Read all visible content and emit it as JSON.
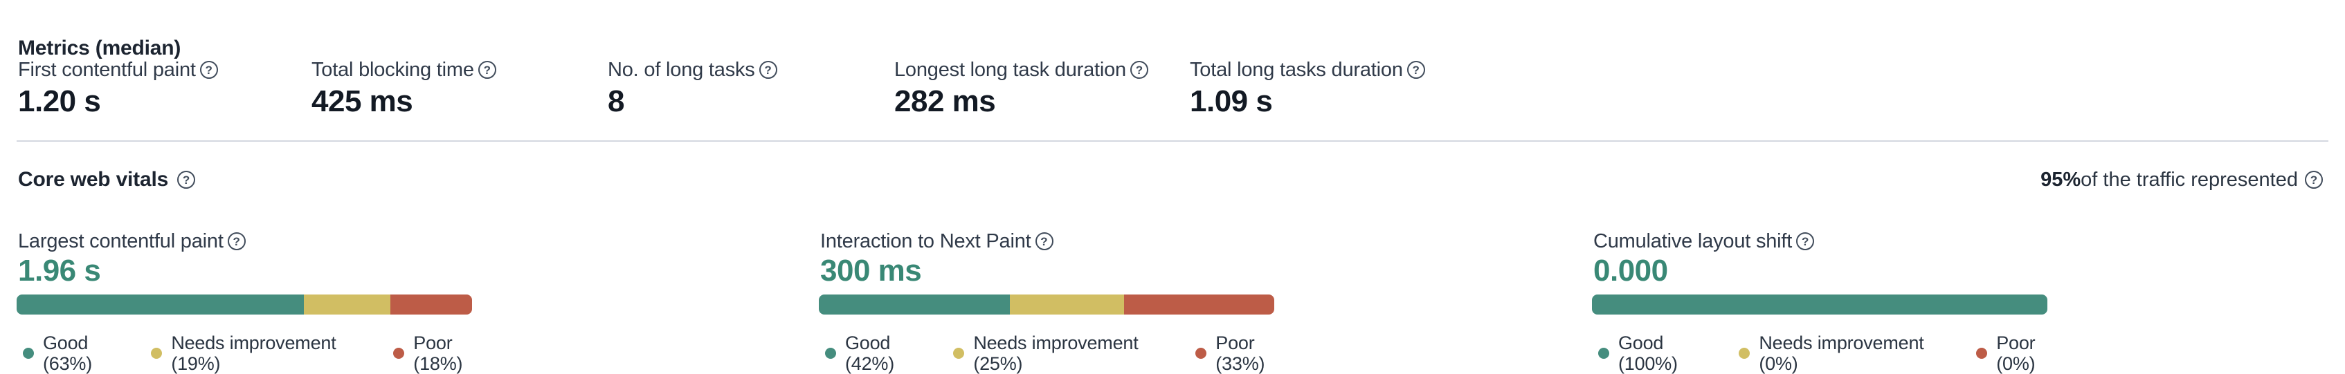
{
  "metrics": {
    "title": "Metrics (median)",
    "items": [
      {
        "label": "First contentful paint",
        "value": "1.20 s"
      },
      {
        "label": "Total blocking time",
        "value": "425 ms"
      },
      {
        "label": "No. of long tasks",
        "value": "8"
      },
      {
        "label": "Longest long task duration",
        "value": "282 ms"
      },
      {
        "label": "Total long tasks duration",
        "value": "1.09 s"
      }
    ]
  },
  "core_web_vitals": {
    "title": "Core web vitals",
    "traffic_percent": "95%",
    "traffic_text": " of the traffic represented",
    "vitals": [
      {
        "label": "Largest contentful paint",
        "value": "1.96 s",
        "distribution": {
          "good": 63,
          "needs_improvement": 19,
          "poor": 18
        },
        "legend": [
          {
            "key": "good",
            "label": "Good (63%)"
          },
          {
            "key": "needs_improvement",
            "label": "Needs improvement (19%)"
          },
          {
            "key": "poor",
            "label": "Poor (18%)"
          }
        ]
      },
      {
        "label": "Interaction to Next Paint",
        "value": "300 ms",
        "distribution": {
          "good": 42,
          "needs_improvement": 25,
          "poor": 33
        },
        "legend": [
          {
            "key": "good",
            "label": "Good (42%)"
          },
          {
            "key": "needs_improvement",
            "label": "Needs improvement (25%)"
          },
          {
            "key": "poor",
            "label": "Poor (33%)"
          }
        ]
      },
      {
        "label": "Cumulative layout shift",
        "value": "0.000",
        "distribution": {
          "good": 100,
          "needs_improvement": 0,
          "poor": 0
        },
        "legend": [
          {
            "key": "good",
            "label": "Good (100%)"
          },
          {
            "key": "needs_improvement",
            "label": "Needs improvement (0%)"
          },
          {
            "key": "poor",
            "label": "Poor (0%)"
          }
        ]
      }
    ]
  },
  "icons": {
    "help": "?"
  },
  "colors": {
    "good": "#458d7e",
    "needs_improvement": "#d1be63",
    "poor": "#bd5c47",
    "value_green": "#398875",
    "divider": "#d4d8e0",
    "text_primary": "#1c2430",
    "text_secondary": "#303a49"
  }
}
